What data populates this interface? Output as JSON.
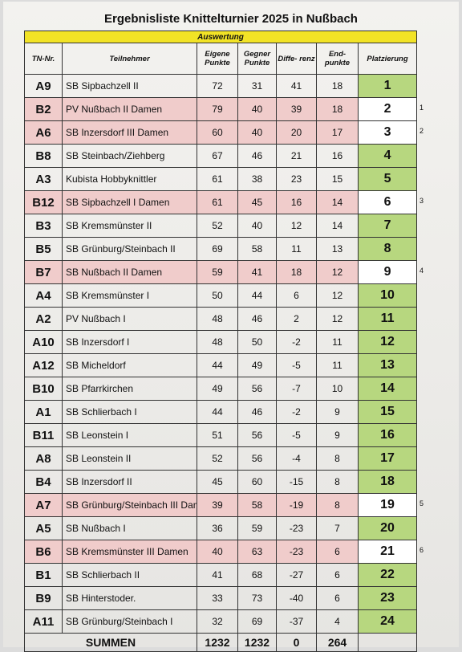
{
  "title": "Ergebnisliste Knittelturnier 2025 in Nußbach",
  "band_label": "Auswertung",
  "headers": {
    "tn": "TN-Nr.",
    "name": "Teilnehmer",
    "eigene": "Eigene Punkte",
    "gegner": "Gegner Punkte",
    "diff": "Diffe- renz",
    "end": "End- punkte",
    "platz": "Platzierung"
  },
  "rows": [
    {
      "tn": "A9",
      "name": "SB Sipbachzell II",
      "eigene": "72",
      "gegner": "31",
      "diff": "41",
      "end": "18",
      "platz": "1",
      "highlight": false,
      "note": ""
    },
    {
      "tn": "B2",
      "name": "PV Nußbach II Damen",
      "eigene": "79",
      "gegner": "40",
      "diff": "39",
      "end": "18",
      "platz": "2",
      "highlight": true,
      "note": "1"
    },
    {
      "tn": "A6",
      "name": "SB Inzersdorf III Damen",
      "eigene": "60",
      "gegner": "40",
      "diff": "20",
      "end": "17",
      "platz": "3",
      "highlight": true,
      "note": "2"
    },
    {
      "tn": "B8",
      "name": "SB Steinbach/Ziehberg",
      "eigene": "67",
      "gegner": "46",
      "diff": "21",
      "end": "16",
      "platz": "4",
      "highlight": false,
      "note": ""
    },
    {
      "tn": "A3",
      "name": "Kubista Hobbyknittler",
      "eigene": "61",
      "gegner": "38",
      "diff": "23",
      "end": "15",
      "platz": "5",
      "highlight": false,
      "note": ""
    },
    {
      "tn": "B12",
      "name": "SB Sipbachzell I Damen",
      "eigene": "61",
      "gegner": "45",
      "diff": "16",
      "end": "14",
      "platz": "6",
      "highlight": true,
      "note": "3"
    },
    {
      "tn": "B3",
      "name": "SB Kremsmünster II",
      "eigene": "52",
      "gegner": "40",
      "diff": "12",
      "end": "14",
      "platz": "7",
      "highlight": false,
      "note": ""
    },
    {
      "tn": "B5",
      "name": "SB Grünburg/Steinbach II",
      "eigene": "69",
      "gegner": "58",
      "diff": "11",
      "end": "13",
      "platz": "8",
      "highlight": false,
      "note": ""
    },
    {
      "tn": "B7",
      "name": "SB Nußbach II Damen",
      "eigene": "59",
      "gegner": "41",
      "diff": "18",
      "end": "12",
      "platz": "9",
      "highlight": true,
      "note": "4"
    },
    {
      "tn": "A4",
      "name": "SB Kremsmünster I",
      "eigene": "50",
      "gegner": "44",
      "diff": "6",
      "end": "12",
      "platz": "10",
      "highlight": false,
      "note": ""
    },
    {
      "tn": "A2",
      "name": "PV Nußbach I",
      "eigene": "48",
      "gegner": "46",
      "diff": "2",
      "end": "12",
      "platz": "11",
      "highlight": false,
      "note": ""
    },
    {
      "tn": "A10",
      "name": "SB Inzersdorf I",
      "eigene": "48",
      "gegner": "50",
      "diff": "-2",
      "end": "11",
      "platz": "12",
      "highlight": false,
      "note": ""
    },
    {
      "tn": "A12",
      "name": "SB Micheldorf",
      "eigene": "44",
      "gegner": "49",
      "diff": "-5",
      "end": "11",
      "platz": "13",
      "highlight": false,
      "note": ""
    },
    {
      "tn": "B10",
      "name": "SB Pfarrkirchen",
      "eigene": "49",
      "gegner": "56",
      "diff": "-7",
      "end": "10",
      "platz": "14",
      "highlight": false,
      "note": ""
    },
    {
      "tn": "A1",
      "name": "SB Schlierbach I",
      "eigene": "44",
      "gegner": "46",
      "diff": "-2",
      "end": "9",
      "platz": "15",
      "highlight": false,
      "note": ""
    },
    {
      "tn": "B11",
      "name": "SB Leonstein I",
      "eigene": "51",
      "gegner": "56",
      "diff": "-5",
      "end": "9",
      "platz": "16",
      "highlight": false,
      "note": ""
    },
    {
      "tn": "A8",
      "name": "SB Leonstein II",
      "eigene": "52",
      "gegner": "56",
      "diff": "-4",
      "end": "8",
      "platz": "17",
      "highlight": false,
      "note": ""
    },
    {
      "tn": "B4",
      "name": "SB Inzersdorf II",
      "eigene": "45",
      "gegner": "60",
      "diff": "-15",
      "end": "8",
      "platz": "18",
      "highlight": false,
      "note": ""
    },
    {
      "tn": "A7",
      "name": "SB Grünburg/Steinbach III Dam",
      "eigene": "39",
      "gegner": "58",
      "diff": "-19",
      "end": "8",
      "platz": "19",
      "highlight": true,
      "note": "5"
    },
    {
      "tn": "A5",
      "name": "SB Nußbach I",
      "eigene": "36",
      "gegner": "59",
      "diff": "-23",
      "end": "7",
      "platz": "20",
      "highlight": false,
      "note": ""
    },
    {
      "tn": "B6",
      "name": "SB Kremsmünster III Damen",
      "eigene": "40",
      "gegner": "63",
      "diff": "-23",
      "end": "6",
      "platz": "21",
      "highlight": true,
      "note": "6"
    },
    {
      "tn": "B1",
      "name": "SB Schlierbach II",
      "eigene": "41",
      "gegner": "68",
      "diff": "-27",
      "end": "6",
      "platz": "22",
      "highlight": false,
      "note": ""
    },
    {
      "tn": "B9",
      "name": "SB Hinterstoder.",
      "eigene": "33",
      "gegner": "73",
      "diff": "-40",
      "end": "6",
      "platz": "23",
      "highlight": false,
      "note": ""
    },
    {
      "tn": "A11",
      "name": "SB Grünburg/Steinbach I",
      "eigene": "32",
      "gegner": "69",
      "diff": "-37",
      "end": "4",
      "platz": "24",
      "highlight": false,
      "note": ""
    }
  ],
  "summen": {
    "label": "SUMMEN",
    "eigene": "1232",
    "gegner": "1232",
    "diff": "0",
    "end": "264"
  },
  "colors": {
    "band": "#f2e326",
    "highlight": "#f0cccb",
    "placement_green": "#b7d77f"
  }
}
